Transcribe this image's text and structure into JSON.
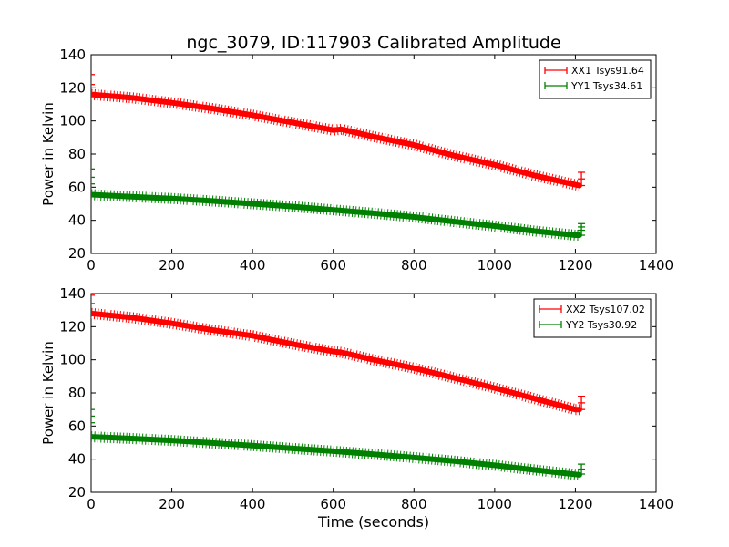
{
  "figure": {
    "title": "ngc_3079, ID:117903 Calibrated Amplitude",
    "xlabel": "Time (seconds)"
  },
  "chart_data": [
    {
      "type": "line",
      "title": "ngc_3079, ID:117903 Calibrated Amplitude",
      "xlabel": "",
      "ylabel": "Power in Kelvin",
      "xlim": [
        0,
        1400
      ],
      "ylim": [
        20,
        140
      ],
      "xticks": [
        "0",
        "200",
        "400",
        "600",
        "800",
        "1000",
        "1200",
        "1400"
      ],
      "yticks": [
        "20",
        "40",
        "60",
        "80",
        "100",
        "120",
        "140"
      ],
      "grid": false,
      "legend_position": "top-right",
      "marker": "+",
      "series": [
        {
          "name": "XX1 Tsys91.64",
          "color": "#ff0000",
          "x": [
            0,
            100,
            200,
            300,
            400,
            500,
            600,
            620,
            700,
            800,
            900,
            1000,
            1100,
            1200,
            1210
          ],
          "y": [
            116,
            114,
            111,
            107.5,
            103.5,
            99,
            94.5,
            95,
            90.5,
            85.5,
            79,
            73.5,
            67,
            61.5,
            61
          ]
        },
        {
          "name": "YY1 Tsys34.61",
          "color": "#008000",
          "x": [
            0,
            100,
            200,
            300,
            400,
            500,
            600,
            700,
            800,
            900,
            1000,
            1100,
            1200,
            1210
          ],
          "y": [
            55.5,
            54.3,
            53.2,
            51.7,
            50,
            48.3,
            46.3,
            44.3,
            42,
            39.2,
            36.5,
            33.5,
            31,
            31
          ]
        }
      ],
      "end_spikes": [
        {
          "series": "XX1 Tsys91.64",
          "x": 0,
          "y": [
            116,
            122,
            128
          ]
        },
        {
          "series": "XX1 Tsys91.64",
          "x": 1215,
          "y": [
            61,
            65,
            69
          ]
        },
        {
          "series": "YY1 Tsys34.61",
          "x": 0,
          "y": [
            55.5,
            62,
            66,
            71
          ]
        },
        {
          "series": "YY1 Tsys34.61",
          "x": 1215,
          "y": [
            31,
            34,
            36,
            38
          ]
        }
      ]
    },
    {
      "type": "line",
      "title": "",
      "xlabel": "Time (seconds)",
      "ylabel": "Power in Kelvin",
      "xlim": [
        0,
        1400
      ],
      "ylim": [
        20,
        140
      ],
      "xticks": [
        "0",
        "200",
        "400",
        "600",
        "800",
        "1000",
        "1200",
        "1400"
      ],
      "yticks": [
        "20",
        "40",
        "60",
        "80",
        "100",
        "120",
        "140"
      ],
      "grid": false,
      "legend_position": "top-right",
      "marker": "+",
      "series": [
        {
          "name": "XX2 Tsys107.02",
          "color": "#ff0000",
          "x": [
            0,
            100,
            200,
            300,
            400,
            500,
            600,
            620,
            700,
            800,
            900,
            1000,
            1100,
            1200,
            1210
          ],
          "y": [
            128,
            125.5,
            122,
            118,
            114.5,
            109.5,
            105,
            104.5,
            100,
            95,
            89,
            83,
            76.5,
            70,
            70
          ]
        },
        {
          "name": "YY2 Tsys30.92",
          "color": "#008000",
          "x": [
            0,
            100,
            200,
            300,
            400,
            500,
            600,
            700,
            800,
            900,
            1000,
            1100,
            1200,
            1210
          ],
          "y": [
            53.5,
            52.5,
            51.3,
            49.8,
            48.2,
            46.5,
            44.8,
            43,
            41,
            38.8,
            36.3,
            33.5,
            30.8,
            30.5
          ]
        }
      ],
      "end_spikes": [
        {
          "series": "XX2 Tsys107.02",
          "x": 0,
          "y": [
            128,
            134,
            139
          ]
        },
        {
          "series": "XX2 Tsys107.02",
          "x": 1215,
          "y": [
            70,
            74,
            78
          ]
        },
        {
          "series": "YY2 Tsys30.92",
          "x": 0,
          "y": [
            53.5,
            62,
            66,
            70
          ]
        },
        {
          "series": "YY2 Tsys30.92",
          "x": 1215,
          "y": [
            31,
            34,
            37
          ]
        }
      ]
    }
  ]
}
